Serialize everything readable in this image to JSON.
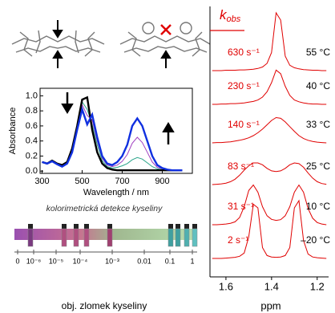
{
  "chart_data": [
    {
      "type": "line",
      "xlabel": "Wavelength / nm",
      "ylabel": "Absorbance",
      "x": [
        300,
        325,
        350,
        375,
        400,
        425,
        450,
        475,
        500,
        525,
        550,
        575,
        600,
        625,
        650,
        675,
        700,
        725,
        750,
        775,
        800,
        825,
        850,
        875,
        900,
        925,
        950,
        975,
        1000
      ],
      "xlim": [
        290,
        1050
      ],
      "ylim": [
        -0.03,
        1.1
      ],
      "xticks": [
        300,
        500,
        700,
        900
      ],
      "yticks": [
        {
          "value": 0,
          "label": "0.0"
        },
        {
          "value": 0.2,
          "label": "0.2"
        },
        {
          "value": 0.4,
          "label": "0.4"
        },
        {
          "value": 0.6,
          "label": "0.6"
        },
        {
          "value": 0.8,
          "label": "0.8"
        },
        {
          "value": 1,
          "label": "1.0"
        }
      ],
      "series": [
        {
          "color": "#2aa58a",
          "values": [
            0.12,
            0.1,
            0.14,
            0.1,
            0.07,
            0.11,
            0.28,
            0.58,
            0.92,
            0.82,
            0.62,
            0.35,
            0.14,
            0.06,
            0.04,
            0.05,
            0.07,
            0.1,
            0.15,
            0.18,
            0.16,
            0.11,
            0.06,
            0.03,
            0.02,
            0.01,
            0.01,
            0.01,
            0.01
          ]
        },
        {
          "color": "#a040c0",
          "values": [
            0.12,
            0.1,
            0.13,
            0.1,
            0.07,
            0.11,
            0.27,
            0.57,
            0.88,
            0.74,
            0.68,
            0.4,
            0.17,
            0.08,
            0.06,
            0.08,
            0.13,
            0.22,
            0.37,
            0.45,
            0.38,
            0.25,
            0.12,
            0.05,
            0.03,
            0.02,
            0.01,
            0.01,
            0.01
          ]
        },
        {
          "color": "#000000",
          "values": [
            0.12,
            0.1,
            0.14,
            0.1,
            0.08,
            0.12,
            0.3,
            0.6,
            0.95,
            0.98,
            0.55,
            0.25,
            0.1,
            0.04,
            0.02,
            0.01,
            0.01,
            0.01,
            0.01,
            0.01,
            0.01,
            0.01,
            0.01,
            0.01,
            0.01,
            0.01,
            0.01,
            0.01,
            0.01
          ]
        },
        {
          "color": "#1030e0",
          "values": [
            0.12,
            0.1,
            0.13,
            0.09,
            0.06,
            0.1,
            0.25,
            0.55,
            0.82,
            0.62,
            0.75,
            0.45,
            0.2,
            0.1,
            0.08,
            0.12,
            0.2,
            0.35,
            0.6,
            0.7,
            0.6,
            0.4,
            0.2,
            0.08,
            0.04,
            0.02,
            0.01,
            0.01,
            0.01
          ]
        }
      ]
    },
    {
      "type": "stacked-spectra",
      "rate_symbol": "k",
      "rate_subscript": "obs",
      "xlabel": "ppm",
      "x": [
        1.66,
        1.64,
        1.62,
        1.6,
        1.58,
        1.56,
        1.54,
        1.52,
        1.5,
        1.48,
        1.46,
        1.44,
        1.42,
        1.4,
        1.38,
        1.36,
        1.34,
        1.32,
        1.3,
        1.28,
        1.26,
        1.24,
        1.22,
        1.2,
        1.18,
        1.16
      ],
      "xlim": [
        1.67,
        1.15
      ],
      "xticks": [
        1.6,
        1.4,
        1.2
      ],
      "color": "#e00000",
      "series": [
        {
          "name": "630 s⁻¹",
          "temperature": "55 °C",
          "values": [
            0,
            0,
            0,
            0.01,
            0.01,
            0.01,
            0.02,
            0.02,
            0.03,
            0.04,
            0.06,
            0.1,
            0.2,
            0.5,
            1.6,
            1.4,
            0.4,
            0.15,
            0.08,
            0.05,
            0.03,
            0.02,
            0.01,
            0.01,
            0,
            0
          ]
        },
        {
          "name": "230 s⁻¹",
          "temperature": "40 °C",
          "values": [
            0,
            0,
            0.01,
            0.01,
            0.02,
            0.02,
            0.03,
            0.04,
            0.06,
            0.08,
            0.12,
            0.2,
            0.35,
            0.6,
            0.95,
            0.85,
            0.5,
            0.25,
            0.12,
            0.07,
            0.04,
            0.02,
            0.01,
            0.01,
            0,
            0
          ]
        },
        {
          "name": "140 s⁻¹",
          "temperature": "33 °C",
          "values": [
            0,
            0.01,
            0.01,
            0.02,
            0.03,
            0.05,
            0.07,
            0.1,
            0.14,
            0.2,
            0.28,
            0.38,
            0.5,
            0.62,
            0.7,
            0.68,
            0.58,
            0.45,
            0.32,
            0.2,
            0.12,
            0.07,
            0.04,
            0.02,
            0.01,
            0
          ]
        },
        {
          "name": "83 s⁻¹",
          "temperature": "25 °C",
          "values": [
            0,
            0.01,
            0.02,
            0.04,
            0.08,
            0.15,
            0.26,
            0.4,
            0.52,
            0.6,
            0.6,
            0.55,
            0.45,
            0.38,
            0.36,
            0.38,
            0.45,
            0.55,
            0.6,
            0.58,
            0.48,
            0.32,
            0.18,
            0.08,
            0.03,
            0.01
          ]
        },
        {
          "name": "31 s⁻¹",
          "temperature": "10 °C",
          "values": [
            0,
            0,
            0.01,
            0.02,
            0.04,
            0.08,
            0.2,
            0.5,
            0.95,
            1.1,
            0.9,
            0.5,
            0.25,
            0.15,
            0.12,
            0.14,
            0.25,
            0.5,
            0.9,
            1.1,
            0.9,
            0.45,
            0.18,
            0.06,
            0.02,
            0
          ]
        },
        {
          "name": "2 s⁻¹",
          "temperature": "–20 °C",
          "values": [
            0,
            0,
            0,
            0.01,
            0.02,
            0.03,
            0.06,
            0.15,
            0.6,
            1.5,
            1.4,
            0.3,
            0.08,
            0.04,
            0.03,
            0.04,
            0.08,
            0.3,
            1.4,
            1.6,
            0.5,
            0.12,
            0.04,
            0.02,
            0.01,
            0
          ]
        }
      ]
    }
  ],
  "scale": {
    "title": "kolorimetrická detekce kyseliny",
    "tick_labels": [
      "0",
      "10⁻⁶",
      "10⁻⁵",
      "10⁻⁴",
      "10⁻³",
      "0.01",
      "0.1",
      "1"
    ],
    "xlabel": "obj. zlomek kyseliny"
  }
}
